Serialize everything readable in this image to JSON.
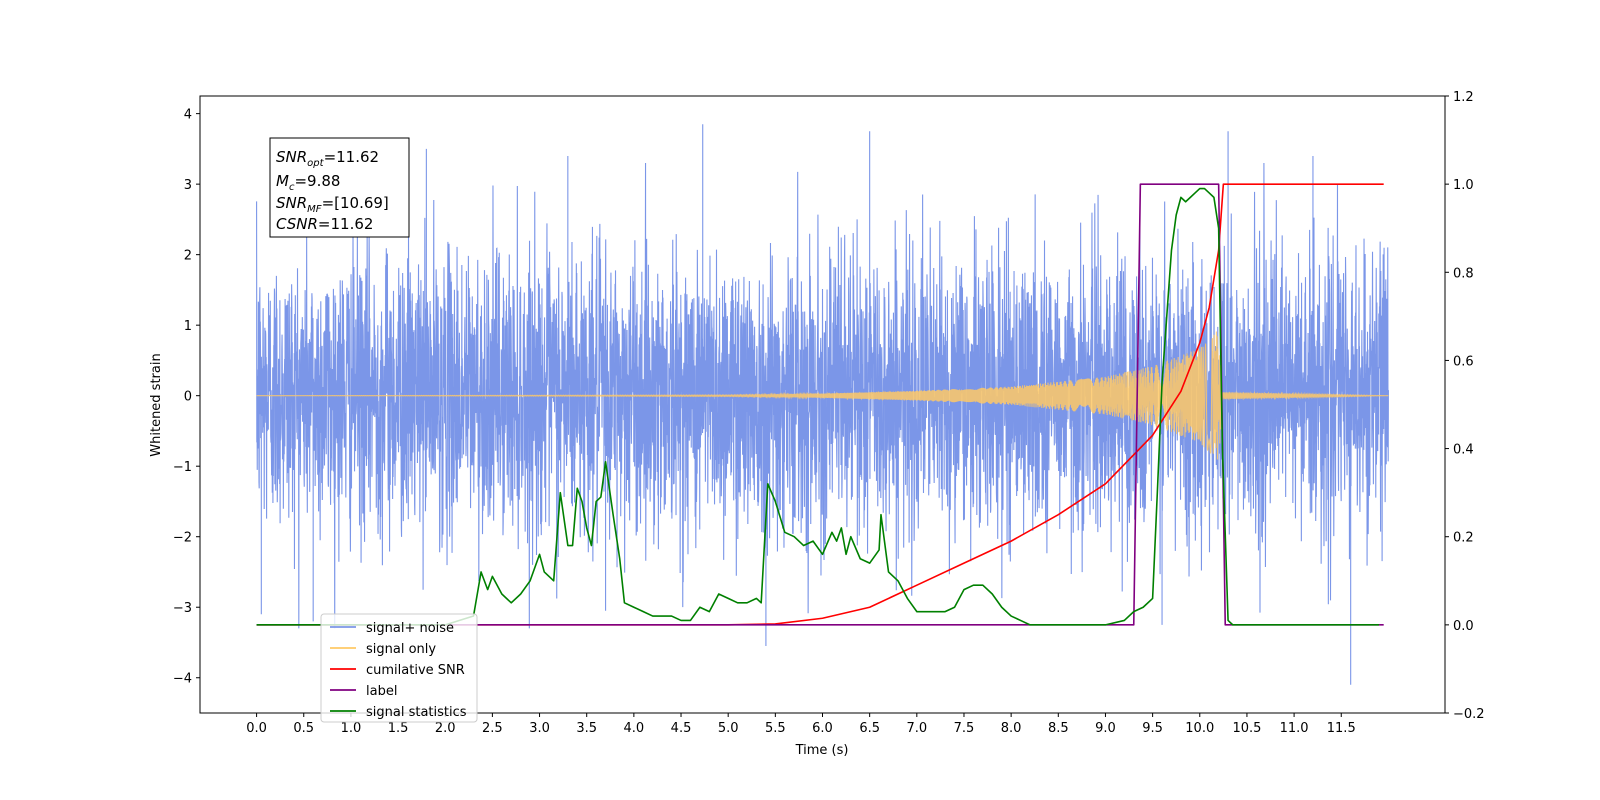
{
  "chart_data": {
    "type": "line",
    "xlabel": "Time (s)",
    "ylabel": "Whitened strain",
    "xlim": [
      -0.6,
      12.6
    ],
    "ylim": [
      -4.5,
      4.25
    ],
    "y2lim": [
      -0.2,
      1.2
    ],
    "x_ticks": [
      0.0,
      0.5,
      1.0,
      1.5,
      2.0,
      2.5,
      3.0,
      3.5,
      4.0,
      4.5,
      5.0,
      5.5,
      6.0,
      6.5,
      7.0,
      7.5,
      8.0,
      8.5,
      9.0,
      9.5,
      10.0,
      10.5,
      11.0,
      11.5
    ],
    "x_tick_labels": [
      "0.0",
      "0.5",
      "1.0",
      "1.5",
      "2.0",
      "2.5",
      "3.0",
      "3.5",
      "4.0",
      "4.5",
      "5.0",
      "5.5",
      "6.0",
      "6.5",
      "7.0",
      "7.5",
      "8.0",
      "8.5",
      "9.0",
      "9.5",
      "10.0",
      "10.5",
      "11.0",
      "11.5"
    ],
    "y_ticks": [
      -4,
      -3,
      -2,
      -1,
      0,
      1,
      2,
      3,
      4
    ],
    "y_tick_labels": [
      "−4",
      "−3",
      "−2",
      "−1",
      "0",
      "1",
      "2",
      "3",
      "4"
    ],
    "y2_ticks": [
      -0.2,
      0.0,
      0.2,
      0.4,
      0.6,
      0.8,
      1.0,
      1.2
    ],
    "y2_tick_labels": [
      "−0.2",
      "0.0",
      "0.2",
      "0.4",
      "0.6",
      "0.8",
      "1.0",
      "1.2"
    ],
    "legend": {
      "placement": "lower-left",
      "entries": [
        {
          "label": "signal+ noise",
          "color": "#7b96e8"
        },
        {
          "label": "signal only",
          "color": "#ffc966"
        },
        {
          "label": "cumilative SNR",
          "color": "#ff0000"
        },
        {
          "label": "label",
          "color": "#800080"
        },
        {
          "label": "signal statistics",
          "color": "#008000"
        }
      ]
    },
    "stats_box": {
      "snr_opt": "11.62",
      "mc": "9.88",
      "snr_mf": "[10.69]",
      "csnr": "11.62"
    },
    "series": [
      {
        "name": "signal+ noise",
        "axis": "left",
        "color": "#7b96e8",
        "kind": "noise",
        "x_range": [
          0.0,
          12.0
        ],
        "typical_band": [
          -1.9,
          2.0
        ],
        "spike_extremes": [
          {
            "x": 4.73,
            "y": 3.85
          },
          {
            "x": 6.5,
            "y": 3.75
          },
          {
            "x": 10.3,
            "y": 3.75
          },
          {
            "x": 11.2,
            "y": 3.4
          },
          {
            "x": 1.8,
            "y": 3.5
          },
          {
            "x": 3.3,
            "y": 3.4
          },
          {
            "x": 5.4,
            "y": -3.55
          },
          {
            "x": 11.6,
            "y": -4.1
          },
          {
            "x": 9.6,
            "y": -3.25
          },
          {
            "x": 0.05,
            "y": -3.1
          },
          {
            "x": 0.6,
            "y": -3.2
          },
          {
            "x": 3.7,
            "y": -3.05
          }
        ]
      },
      {
        "name": "signal only",
        "axis": "left",
        "color": "#ffc966",
        "kind": "chirp",
        "envelope": [
          {
            "x": 0.0,
            "y": 0.0
          },
          {
            "x": 5.0,
            "y": 0.01
          },
          {
            "x": 6.0,
            "y": 0.03
          },
          {
            "x": 7.0,
            "y": 0.07
          },
          {
            "x": 8.0,
            "y": 0.13
          },
          {
            "x": 9.0,
            "y": 0.27
          },
          {
            "x": 9.5,
            "y": 0.42
          },
          {
            "x": 10.0,
            "y": 0.67
          },
          {
            "x": 10.1,
            "y": 0.8
          },
          {
            "x": 10.2,
            "y": 0.95
          },
          {
            "x": 10.24,
            "y": 0.05
          },
          {
            "x": 12.0,
            "y": 0.0
          }
        ]
      },
      {
        "name": "cumilative SNR",
        "axis": "right",
        "color": "#ff0000",
        "x": [
          0.0,
          5.0,
          5.5,
          6.0,
          6.5,
          7.0,
          7.5,
          8.0,
          8.5,
          9.0,
          9.5,
          9.8,
          10.0,
          10.1,
          10.2,
          10.25,
          10.3,
          11.95
        ],
        "y": [
          0.0,
          0.0,
          0.002,
          0.015,
          0.04,
          0.09,
          0.14,
          0.19,
          0.25,
          0.32,
          0.43,
          0.53,
          0.64,
          0.72,
          0.85,
          1.0,
          1.0,
          1.0
        ]
      },
      {
        "name": "label",
        "axis": "right",
        "color": "#800080",
        "x": [
          0.0,
          9.3,
          9.37,
          10.2,
          10.27,
          11.95
        ],
        "y": [
          0.0,
          0.0,
          1.0,
          1.0,
          0.0,
          0.0
        ]
      },
      {
        "name": "signal statistics",
        "axis": "right",
        "color": "#008000",
        "x": [
          0.0,
          2.0,
          2.3,
          2.38,
          2.45,
          2.5,
          2.6,
          2.7,
          2.8,
          2.9,
          3.0,
          3.05,
          3.15,
          3.22,
          3.3,
          3.35,
          3.4,
          3.45,
          3.5,
          3.55,
          3.6,
          3.65,
          3.7,
          3.78,
          3.85,
          3.9,
          4.0,
          4.1,
          4.2,
          4.3,
          4.4,
          4.5,
          4.6,
          4.7,
          4.8,
          4.9,
          5.0,
          5.1,
          5.2,
          5.3,
          5.35,
          5.42,
          5.5,
          5.6,
          5.7,
          5.8,
          5.9,
          6.0,
          6.1,
          6.15,
          6.2,
          6.25,
          6.3,
          6.4,
          6.5,
          6.6,
          6.62,
          6.7,
          6.8,
          6.9,
          7.0,
          7.1,
          7.2,
          7.3,
          7.4,
          7.5,
          7.6,
          7.7,
          7.8,
          7.9,
          8.0,
          8.1,
          8.2,
          8.4,
          8.6,
          8.8,
          9.0,
          9.2,
          9.3,
          9.4,
          9.5,
          9.55,
          9.6,
          9.65,
          9.7,
          9.75,
          9.8,
          9.85,
          9.9,
          9.95,
          10.0,
          10.05,
          10.1,
          10.15,
          10.2,
          10.24,
          10.3,
          10.35,
          10.4,
          11.0,
          11.5,
          11.9
        ],
        "y": [
          0.0,
          0.0,
          0.02,
          0.12,
          0.08,
          0.11,
          0.07,
          0.05,
          0.07,
          0.1,
          0.16,
          0.12,
          0.1,
          0.3,
          0.18,
          0.18,
          0.31,
          0.28,
          0.22,
          0.18,
          0.28,
          0.29,
          0.37,
          0.25,
          0.15,
          0.05,
          0.04,
          0.03,
          0.02,
          0.02,
          0.02,
          0.01,
          0.01,
          0.04,
          0.03,
          0.07,
          0.06,
          0.05,
          0.05,
          0.06,
          0.05,
          0.32,
          0.28,
          0.21,
          0.2,
          0.18,
          0.19,
          0.16,
          0.21,
          0.19,
          0.22,
          0.16,
          0.2,
          0.15,
          0.14,
          0.17,
          0.25,
          0.12,
          0.1,
          0.06,
          0.03,
          0.03,
          0.03,
          0.03,
          0.04,
          0.08,
          0.09,
          0.09,
          0.07,
          0.04,
          0.02,
          0.01,
          0.0,
          0.0,
          0.0,
          0.0,
          0.0,
          0.01,
          0.03,
          0.04,
          0.06,
          0.3,
          0.55,
          0.7,
          0.85,
          0.93,
          0.97,
          0.96,
          0.97,
          0.98,
          0.99,
          0.99,
          0.98,
          0.97,
          0.9,
          0.4,
          0.01,
          0.0,
          0.0,
          0.0,
          0.0,
          0.0
        ]
      }
    ]
  }
}
